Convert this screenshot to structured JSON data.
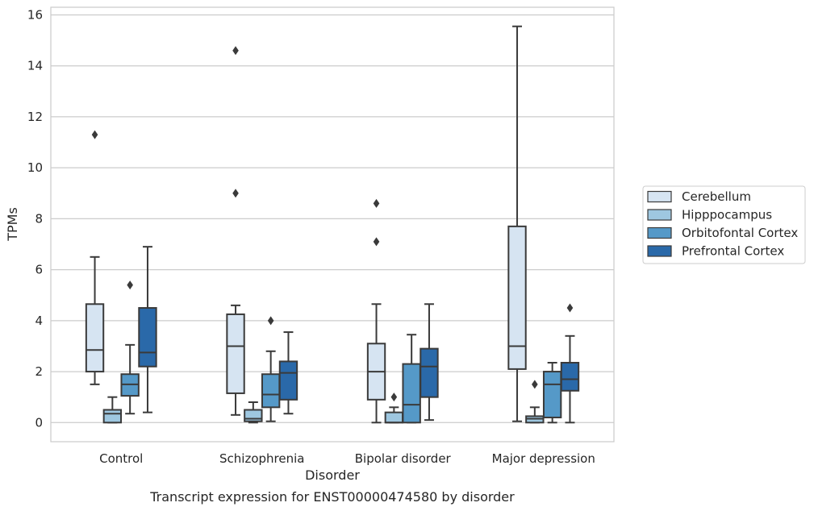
{
  "chart_data": {
    "type": "box",
    "xlabel": "Disorder",
    "ylabel": "TPMs",
    "caption": "Transcript expression for ENST00000474580 by disorder",
    "ylim": [
      -0.75,
      16.3
    ],
    "yticks": [
      0,
      2,
      4,
      6,
      8,
      10,
      12,
      14,
      16
    ],
    "grid": "horizontal",
    "legend_position": "right",
    "categories": [
      "Control",
      "Schizophrenia",
      "Bipolar disorder",
      "Major depression"
    ],
    "series": [
      {
        "name": "Cerebellum",
        "color": "#d6e4f2",
        "boxes": [
          {
            "whisker_low": 1.5,
            "q1": 2.0,
            "median": 2.85,
            "q3": 4.65,
            "whisker_high": 6.5,
            "outliers": [
              11.3
            ]
          },
          {
            "whisker_low": 0.3,
            "q1": 1.15,
            "median": 3.0,
            "q3": 4.25,
            "whisker_high": 4.6,
            "outliers": [
              14.6,
              9.0
            ]
          },
          {
            "whisker_low": 0.0,
            "q1": 0.9,
            "median": 2.0,
            "q3": 3.1,
            "whisker_high": 4.65,
            "outliers": [
              8.6,
              7.1
            ]
          },
          {
            "whisker_low": 0.05,
            "q1": 2.1,
            "median": 3.0,
            "q3": 7.7,
            "whisker_high": 15.55,
            "outliers": []
          }
        ]
      },
      {
        "name": "Hipppocampus",
        "color": "#9ec7e0",
        "boxes": [
          {
            "whisker_low": 0.0,
            "q1": 0.0,
            "median": 0.35,
            "q3": 0.5,
            "whisker_high": 1.0,
            "outliers": []
          },
          {
            "whisker_low": 0.0,
            "q1": 0.05,
            "median": 0.15,
            "q3": 0.5,
            "whisker_high": 0.8,
            "outliers": []
          },
          {
            "whisker_low": 0.0,
            "q1": 0.0,
            "median": 0.0,
            "q3": 0.4,
            "whisker_high": 0.6,
            "outliers": [
              1.0
            ]
          },
          {
            "whisker_low": 0.0,
            "q1": 0.0,
            "median": 0.15,
            "q3": 0.25,
            "whisker_high": 0.6,
            "outliers": [
              1.5
            ]
          }
        ]
      },
      {
        "name": "Orbitofontal Cortex",
        "color": "#5599c8",
        "boxes": [
          {
            "whisker_low": 0.35,
            "q1": 1.05,
            "median": 1.5,
            "q3": 1.9,
            "whisker_high": 3.05,
            "outliers": [
              5.4
            ]
          },
          {
            "whisker_low": 0.05,
            "q1": 0.6,
            "median": 1.1,
            "q3": 1.9,
            "whisker_high": 2.8,
            "outliers": [
              4.0
            ]
          },
          {
            "whisker_low": 0.0,
            "q1": 0.0,
            "median": 0.7,
            "q3": 2.3,
            "whisker_high": 3.45,
            "outliers": []
          },
          {
            "whisker_low": 0.0,
            "q1": 0.2,
            "median": 1.5,
            "q3": 2.0,
            "whisker_high": 2.35,
            "outliers": []
          }
        ]
      },
      {
        "name": "Prefrontal Cortex",
        "color": "#2a69a9",
        "boxes": [
          {
            "whisker_low": 0.4,
            "q1": 2.2,
            "median": 2.75,
            "q3": 4.5,
            "whisker_high": 6.9,
            "outliers": []
          },
          {
            "whisker_low": 0.35,
            "q1": 0.9,
            "median": 1.95,
            "q3": 2.4,
            "whisker_high": 3.55,
            "outliers": []
          },
          {
            "whisker_low": 0.1,
            "q1": 1.0,
            "median": 2.2,
            "q3": 2.9,
            "whisker_high": 4.65,
            "outliers": []
          },
          {
            "whisker_low": 0.0,
            "q1": 1.25,
            "median": 1.7,
            "q3": 2.35,
            "whisker_high": 3.4,
            "outliers": [
              4.5
            ]
          }
        ]
      }
    ]
  }
}
